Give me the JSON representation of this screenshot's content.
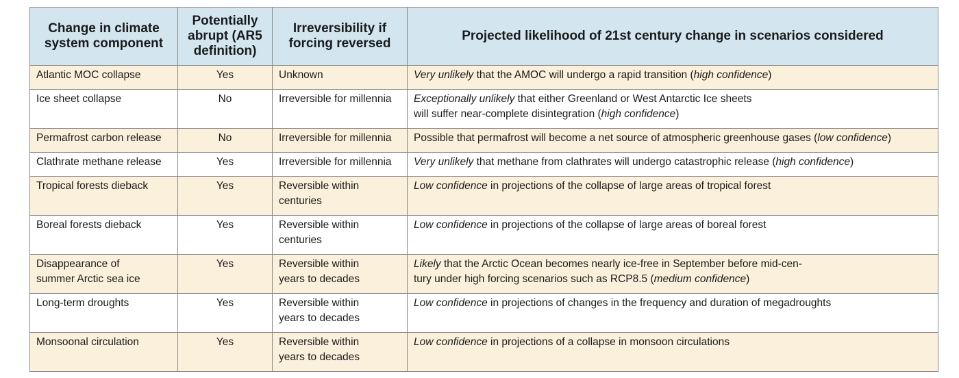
{
  "header": {
    "col1": [
      "Change in climate",
      "system component"
    ],
    "col2": [
      "Potentially",
      "abrupt (AR5",
      "definition)"
    ],
    "col3": [
      "Irreversibility if",
      "forcing reversed"
    ],
    "col4": "Projected likelihood of 21st century change in scenarios considered"
  },
  "rows": [
    {
      "component": [
        "Atlantic MOC collapse"
      ],
      "abrupt": "Yes",
      "irreversibility": [
        "Unknown"
      ],
      "likelihood": [
        [
          {
            "t": "Very unlikely",
            "i": true
          },
          {
            "t": " that the AMOC will undergo a rapid transition ("
          },
          {
            "t": "high confidence",
            "i": true
          },
          {
            "t": ")"
          }
        ]
      ]
    },
    {
      "component": [
        "Ice sheet collapse"
      ],
      "abrupt": "No",
      "irreversibility": [
        "Irreversible for millennia"
      ],
      "likelihood": [
        [
          {
            "t": "Exceptionally unlikely",
            "i": true
          },
          {
            "t": " that either Greenland or West Antarctic Ice sheets"
          }
        ],
        [
          {
            "t": "will suffer near-complete disintegration ("
          },
          {
            "t": "high confidence",
            "i": true
          },
          {
            "t": ")"
          }
        ]
      ]
    },
    {
      "component": [
        "Permafrost carbon release"
      ],
      "abrupt": "No",
      "irreversibility": [
        "Irreversible for millennia"
      ],
      "likelihood": [
        [
          {
            "t": "Possible that permafrost will become a net source of atmospheric greenhouse gases ("
          },
          {
            "t": "low confidence",
            "i": true
          },
          {
            "t": ")"
          }
        ]
      ]
    },
    {
      "component": [
        "Clathrate methane release"
      ],
      "abrupt": "Yes",
      "irreversibility": [
        "Irreversible for millennia"
      ],
      "likelihood": [
        [
          {
            "t": "Very unlikely",
            "i": true
          },
          {
            "t": " that methane from clathrates will undergo catastrophic release ("
          },
          {
            "t": "high confidence",
            "i": true
          },
          {
            "t": ")"
          }
        ]
      ]
    },
    {
      "component": [
        "Tropical forests dieback"
      ],
      "abrupt": "Yes",
      "irreversibility": [
        "Reversible within",
        "centuries"
      ],
      "likelihood": [
        [
          {
            "t": "Low confidence",
            "i": true
          },
          {
            "t": " in projections of the collapse of large areas of tropical forest"
          }
        ]
      ]
    },
    {
      "component": [
        "Boreal forests dieback"
      ],
      "abrupt": "Yes",
      "irreversibility": [
        "Reversible within",
        "centuries"
      ],
      "likelihood": [
        [
          {
            "t": "Low confidence",
            "i": true
          },
          {
            "t": " in projections of the collapse of large areas of boreal forest"
          }
        ]
      ]
    },
    {
      "component": [
        "Disappearance of",
        "summer Arctic sea ice"
      ],
      "abrupt": "Yes",
      "irreversibility": [
        "Reversible within",
        "years to decades"
      ],
      "likelihood": [
        [
          {
            "t": "Likely",
            "i": true
          },
          {
            "t": " that the Arctic Ocean becomes nearly ice-free in September before mid-cen-"
          }
        ],
        [
          {
            "t": "tury under high forcing scenarios such as RCP8.5 ("
          },
          {
            "t": "medium confidence",
            "i": true
          },
          {
            "t": ")"
          }
        ]
      ]
    },
    {
      "component": [
        "Long-term droughts"
      ],
      "abrupt": "Yes",
      "irreversibility": [
        "Reversible within",
        "years to decades"
      ],
      "likelihood": [
        [
          {
            "t": "Low confidence",
            "i": true
          },
          {
            "t": " in projections of changes in the frequency and duration of megadroughts"
          }
        ]
      ]
    },
    {
      "component": [
        "Monsoonal circulation"
      ],
      "abrupt": "Yes",
      "irreversibility": [
        "Reversible within",
        "years to decades"
      ],
      "likelihood": [
        [
          {
            "t": "Low confidence",
            "i": true
          },
          {
            "t": " in projections of a collapse in monsoon circulations"
          }
        ]
      ]
    }
  ]
}
